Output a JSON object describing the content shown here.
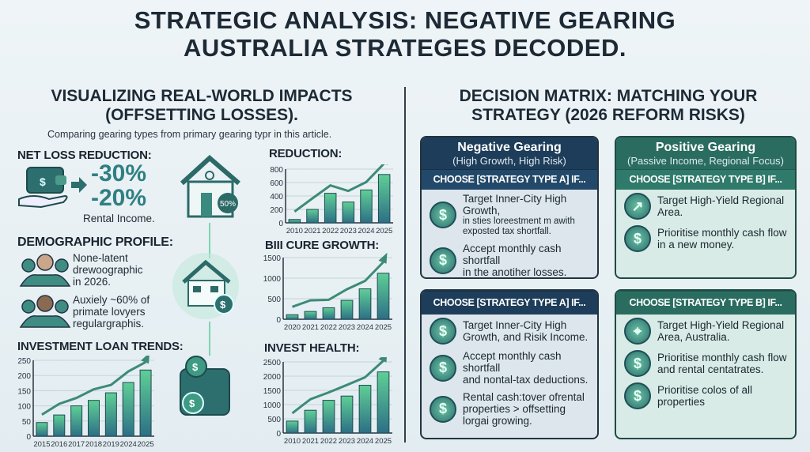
{
  "title": {
    "line1": "STRATEGIC ANALYSIS: NEGATIVE GEARING",
    "line2": "AUSTRALIA STRATEGES DECODED."
  },
  "left": {
    "heading_line1": "VISUALIZING REAL-WORLD IMPACTS",
    "heading_line2": "(OFFSETTING LOSSES).",
    "subtitle": "Comparing gearing types from primary gearing typr in this article.",
    "net_loss": {
      "label": "NET LOSS REDUCTION:",
      "value1": "-30%",
      "value2": "-20%",
      "caption": "Rental Income."
    },
    "house_badge": "50%",
    "demographic": {
      "label": "DEMOGRAPHIC PROFILE:",
      "text1_l1": "None-latent",
      "text1_l2": "drewoographic",
      "text1_l3": "in 2026.",
      "text2_l1": "Auxiely ~60% of",
      "text2_l2": "primate lovyers",
      "text2_l3": "regulargraphis."
    },
    "icons": {
      "wallet": "wallet-icon",
      "house": "house-icon",
      "people": "people-icon",
      "dollar": "dollar-coin-icon"
    }
  },
  "right": {
    "heading_line1": "DECISION MATRIX: MATCHING YOUR",
    "heading_line2": "STRATEGY (2026 REFORM RISKS)",
    "card_a_top": {
      "title": "Negative Gearing",
      "subtitle": "(High Growth, High Risk)",
      "choose": "CHOOSE [STRATEGY TYPE A] IF...",
      "items": [
        {
          "main": "Target Inner-City High Growth,",
          "sub1": "in sties loreestment m awith",
          "sub2": "exposted tax shortfall.",
          "icon": "$"
        },
        {
          "main": "Accept monthly cash shortfall",
          "sub1": "in the anotiher losses.",
          "icon": "$"
        }
      ]
    },
    "card_b_top": {
      "title": "Positive Gearing",
      "subtitle": "(Passive Income, Regional Focus)",
      "choose": "CHOOSE [STRATEGY TYPE B] IF...",
      "items": [
        {
          "main": "Target High-Yield Regional",
          "sub1": "Area.",
          "icon": "↗"
        },
        {
          "main": "Prioritise monthly cash flow",
          "sub1": "in a new money.",
          "icon": "$"
        }
      ]
    },
    "card_a_bottom": {
      "choose": "CHOOSE [STRATEGY TYPE A] IF...",
      "items": [
        {
          "l1": "Target Inner-City High",
          "l2": "Growth, and Risik Income.",
          "icon": "$"
        },
        {
          "l1": "Accept monthly cash shortfall",
          "l2": "and nontal-tax deductions.",
          "icon": "$"
        },
        {
          "l1": "Rental cash:tover ofrental",
          "l2": "properties > offsetting",
          "l3": "lorgai growing.",
          "icon": "$"
        }
      ]
    },
    "card_b_bottom": {
      "choose": "CHOOSE [STRATEGY TYPE B] IF...",
      "items": [
        {
          "l1": "Target High-Yield Regional",
          "l2": "Area,  Australia.",
          "icon": "⌖"
        },
        {
          "l1": "Prioritise monthly cash flow",
          "l2": "and rental centatrates.",
          "icon": "$"
        },
        {
          "l1": "Prioritise colos of all",
          "l2": "properties",
          "icon": "$"
        }
      ]
    }
  },
  "colors": {
    "navy": "#1e3d5a",
    "teal": "#2a6d60",
    "bar_top": "#5fcf95",
    "bar_bottom": "#2d6f86",
    "arrow": "#3d8a78"
  },
  "chart_data": [
    {
      "id": "loan",
      "type": "bar",
      "title": "INVESTMENT LOAN TRENDS:",
      "categories": [
        "2015",
        "2016",
        "2017",
        "2018",
        "2019",
        "2024",
        "2025"
      ],
      "values": [
        45,
        70,
        100,
        118,
        143,
        177,
        218
      ],
      "ylim": [
        0,
        250
      ],
      "yticks": [
        0,
        50,
        100,
        150,
        200,
        250
      ],
      "grid": true
    },
    {
      "id": "reduction",
      "type": "bar",
      "title": "REDUCTION:",
      "categories": [
        "2010",
        "2021",
        "2022",
        "2023",
        "2024",
        "2025"
      ],
      "values": [
        50,
        200,
        440,
        310,
        490,
        720
      ],
      "ylim": [
        0,
        800
      ],
      "yticks": [
        0,
        200,
        400,
        600,
        800
      ],
      "grid": true
    },
    {
      "id": "growth",
      "type": "bar",
      "title": "BIII CURE GROWTH:",
      "categories": [
        "2020",
        "2021",
        "2022",
        "2023",
        "2024",
        "2025"
      ],
      "values": [
        110,
        190,
        280,
        460,
        740,
        1120
      ],
      "ylim": [
        0,
        1500
      ],
      "yticks": [
        0,
        500,
        1000,
        1500
      ],
      "grid": true
    },
    {
      "id": "health",
      "type": "bar",
      "title": "INVEST HEALTH:",
      "categories": [
        "2010",
        "2021",
        "2022",
        "2023",
        "2024",
        "2025"
      ],
      "values": [
        420,
        800,
        1150,
        1300,
        1680,
        2150
      ],
      "ylim": [
        0,
        2500
      ],
      "yticks": [
        0,
        500,
        1000,
        1500,
        2000,
        2500
      ],
      "grid": true
    }
  ]
}
